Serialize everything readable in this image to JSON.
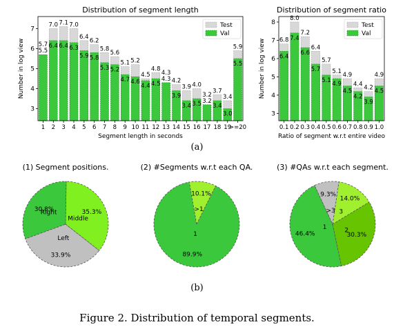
{
  "colors": {
    "val": "#3cc83c",
    "test": "#d8d8d8",
    "left": "#c0c0c0",
    "middle": "#80f020",
    "right": "#3cc83c",
    "one": "#3cc83c",
    "gt1": "#a0f030",
    "two": "#66c400",
    "three": "#a0f030"
  },
  "subfig_a_label": "(a)",
  "subfig_b_label": "(b)",
  "caption": "Figure 2. Distribution of temporal segments.",
  "chart_data": [
    {
      "type": "bar",
      "title": "Distribution of segment length",
      "xlabel": "Segment length in seconds",
      "ylabel": "Number in log view",
      "ylim": [
        2.4,
        7.6
      ],
      "yticks": [
        "3",
        "4",
        "5",
        "6",
        "7"
      ],
      "categories": [
        "1",
        "2",
        "3",
        "4",
        "5",
        "6",
        "7",
        "8",
        "9",
        "10",
        "11",
        "12",
        "13",
        "14",
        "15",
        "16",
        "17",
        "18",
        "19",
        ">=20"
      ],
      "legend": "top-right",
      "series": [
        {
          "name": "Test",
          "values": [
            5.5,
            7.0,
            7.1,
            7.0,
            6.4,
            6.2,
            5.8,
            5.6,
            5.1,
            5.2,
            4.5,
            4.8,
            4.3,
            4.2,
            3.9,
            4.0,
            3.2,
            3.7,
            3.4,
            5.9
          ],
          "labels": [
            "5.5",
            "7.0",
            "7.1",
            "7.0",
            "6.4",
            "6.2",
            "5.8",
            "5.6",
            "5.1",
            "5.2",
            "4.5",
            "4.8",
            "4.3",
            "4.2",
            "3.9",
            "4.0",
            "3.2",
            "3.7",
            "3.4",
            "5.9"
          ]
        },
        {
          "name": "Val",
          "values": [
            5.7,
            6.4,
            6.4,
            6.3,
            5.9,
            5.8,
            5.3,
            5.2,
            4.7,
            4.6,
            4.4,
            4.5,
            4.3,
            3.9,
            3.4,
            3.5,
            3.2,
            3.4,
            3.0,
            5.5
          ],
          "labels": [
            "5.7",
            "6.4",
            "6.4",
            "6.3",
            "5.9",
            "5.8",
            "5.3",
            "5.2",
            "4.7",
            "4.6",
            "4.4",
            "4.5",
            "4.3",
            "3.9",
            "3.4",
            "3.5",
            "3.2",
            "3.4",
            "3.0",
            "5.5"
          ]
        }
      ]
    },
    {
      "type": "bar",
      "title": "Distribution of segment ratio",
      "xlabel": "Ratio of segment w.r.t entire video",
      "ylabel": "Number in log view",
      "ylim": [
        2.6,
        8.3
      ],
      "yticks": [
        "3",
        "4",
        "5",
        "6",
        "7",
        "8"
      ],
      "categories": [
        "0.1",
        "0.2",
        "0.3",
        "0.4",
        "0.5",
        "0.6",
        "0.7",
        "0.8",
        "0.9",
        "1.0"
      ],
      "legend": "top-right",
      "series": [
        {
          "name": "Test",
          "values": [
            6.8,
            8.0,
            7.2,
            6.4,
            5.7,
            5.1,
            4.9,
            4.4,
            4.2,
            4.9
          ],
          "labels": [
            "6.8",
            "8.0",
            "7.2",
            "6.4",
            "5.7",
            "5.1",
            "4.9",
            "4.4",
            "4.2",
            "4.9"
          ]
        },
        {
          "name": "Val",
          "values": [
            6.4,
            7.4,
            6.6,
            5.7,
            5.1,
            4.9,
            4.5,
            4.2,
            3.9,
            4.5
          ],
          "labels": [
            "6.4",
            "7.4",
            "6.6",
            "5.7",
            "5.1",
            "4.9",
            "4.5",
            "4.2",
            "3.9",
            "4.5"
          ]
        }
      ]
    },
    {
      "type": "pie",
      "title": "(1) Segment positions.",
      "slices": [
        {
          "label": "Left",
          "pct_label": "33.9%",
          "value": 33.9,
          "color": "#c0c0c0"
        },
        {
          "label": "Middle",
          "pct_label": "35.3%",
          "value": 35.3,
          "color": "#80f020"
        },
        {
          "label": "Right",
          "pct_label": "30.8%",
          "value": 30.8,
          "color": "#3cc83c"
        }
      ]
    },
    {
      "type": "pie",
      "title": "(2) #Segments w.r.t each QA.",
      "slices": [
        {
          "label": "1",
          "pct_label": "89.9%",
          "value": 89.9,
          "color": "#3cc83c"
        },
        {
          "label": ">1",
          "pct_label": "10.1%",
          "value": 10.1,
          "color": "#a0f030"
        }
      ]
    },
    {
      "type": "pie",
      "title": "(3) #QAs w.r.t each segment.",
      "slices": [
        {
          "label": "1",
          "pct_label": "46.4%",
          "value": 46.4,
          "color": "#3cc83c"
        },
        {
          "label": "2",
          "pct_label": "30.3%",
          "value": 30.3,
          "color": "#66c400"
        },
        {
          "label": "3",
          "pct_label": "14.0%",
          "value": 14.0,
          "color": "#a0f030"
        },
        {
          "label": ">3",
          "pct_label": "9.3%",
          "value": 9.3,
          "color": "#c0c0c0"
        }
      ]
    }
  ]
}
